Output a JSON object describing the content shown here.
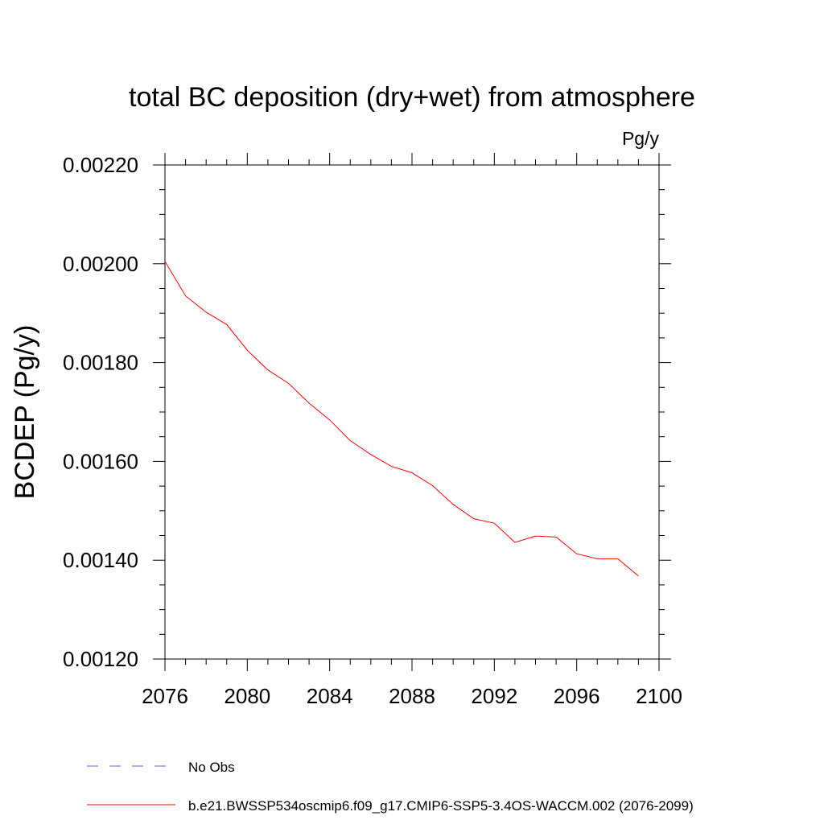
{
  "chart_data": {
    "type": "line",
    "title": "total BC deposition (dry+wet) from atmosphere",
    "units_label": "Pg/y",
    "ylabel": "BCDEP  (Pg/y)",
    "xlabel": "",
    "xlim": [
      2076,
      2100
    ],
    "ylim": [
      0.0012,
      0.0022
    ],
    "xticks": [
      2076,
      2080,
      2084,
      2088,
      2092,
      2096,
      2100
    ],
    "xtick_labels": [
      "2076",
      "2080",
      "2084",
      "2088",
      "2092",
      "2096",
      "2100"
    ],
    "yticks": [
      0.0012,
      0.0014,
      0.0016,
      0.0018,
      0.002,
      0.0022
    ],
    "ytick_labels": [
      "0.00120",
      "0.00140",
      "0.00160",
      "0.00180",
      "0.00200",
      "0.00220"
    ],
    "grid": false,
    "legend": {
      "placement": "bottom",
      "entries": [
        {
          "label": "No Obs",
          "color": "#6a5acd",
          "style": "dashed"
        },
        {
          "label": "b.e21.BWSSP534oscmip6.f09_g17.CMIP6-SSP5-3.4OS-WACCM.002 (2076-2099)",
          "color": "#ff0000",
          "style": "solid"
        }
      ]
    },
    "series": [
      {
        "name": "b.e21.BWSSP534oscmip6.f09_g17.CMIP6-SSP5-3.4OS-WACCM.002 (2076-2099)",
        "color": "#ff0000",
        "x": [
          2076,
          2077,
          2078,
          2079,
          2080,
          2081,
          2082,
          2083,
          2084,
          2085,
          2086,
          2087,
          2088,
          2089,
          2090,
          2091,
          2092,
          2093,
          2094,
          2095,
          2096,
          2097,
          2098,
          2099
        ],
        "values": [
          0.002005,
          0.001935,
          0.001902,
          0.001877,
          0.001825,
          0.001785,
          0.001758,
          0.001718,
          0.001684,
          0.001642,
          0.001614,
          0.00159,
          0.001577,
          0.001551,
          0.001513,
          0.001484,
          0.001475,
          0.001436,
          0.001449,
          0.001447,
          0.001413,
          0.001403,
          0.001403,
          0.001368
        ]
      }
    ]
  }
}
